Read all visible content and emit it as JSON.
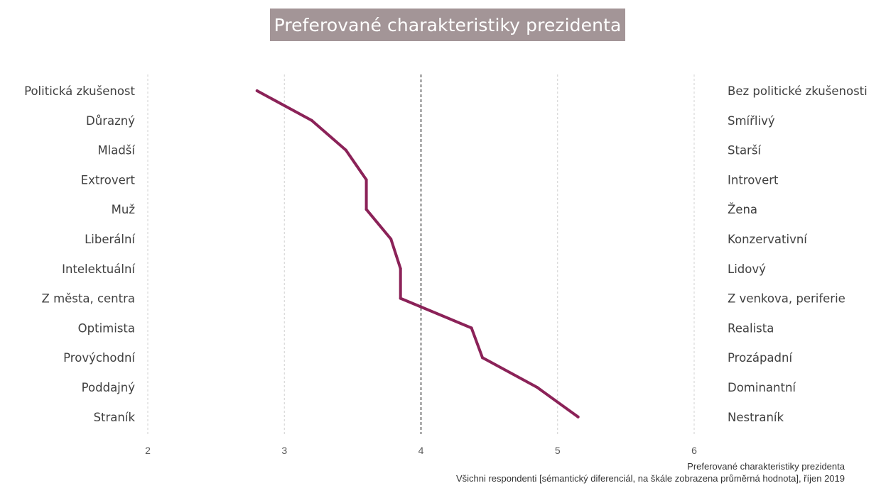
{
  "title": "Preferované charakteristiky prezidenta",
  "footer": {
    "line1": "Preferované charakteristiky prezidenta",
    "line2": "Všichni respondenti [sémantický diferenciál, na škále zobrazena průměrná hodnota], říjen 2019"
  },
  "colors": {
    "line": "#8b2258",
    "title_bg": "#a39597",
    "reference_line": "#808080",
    "grid": "#d0d0d0"
  },
  "chart_data": {
    "type": "line",
    "orientation": "vertical-profile",
    "title": "Preferované charakteristiky prezidenta",
    "x_ticks": [
      "2",
      "3",
      "4",
      "5",
      "6"
    ],
    "xlim": [
      2,
      6
    ],
    "reference_line": 4,
    "grid": true,
    "left_labels": [
      "Politická zkušenost",
      "Důrazný",
      "Mladší",
      "Extrovert",
      "Muž",
      "Liberální",
      "Intelektuální",
      "Z města, centra",
      "Optimista",
      "Provýchodní",
      "Poddajný",
      "Straník"
    ],
    "right_labels": [
      "Bez politické zkušenosti",
      "Smířlivý",
      "Starší",
      "Introvert",
      "Žena",
      "Konzervativní",
      "Lidový",
      "Z venkova, periferie",
      "Realista",
      "Prozápadní",
      "Dominantní",
      "Nestraník"
    ],
    "series": [
      {
        "values": [
          2.8,
          3.2,
          3.45,
          3.6,
          3.6,
          3.78,
          3.85,
          3.85,
          4.37,
          4.45,
          4.85,
          5.15
        ]
      }
    ]
  }
}
